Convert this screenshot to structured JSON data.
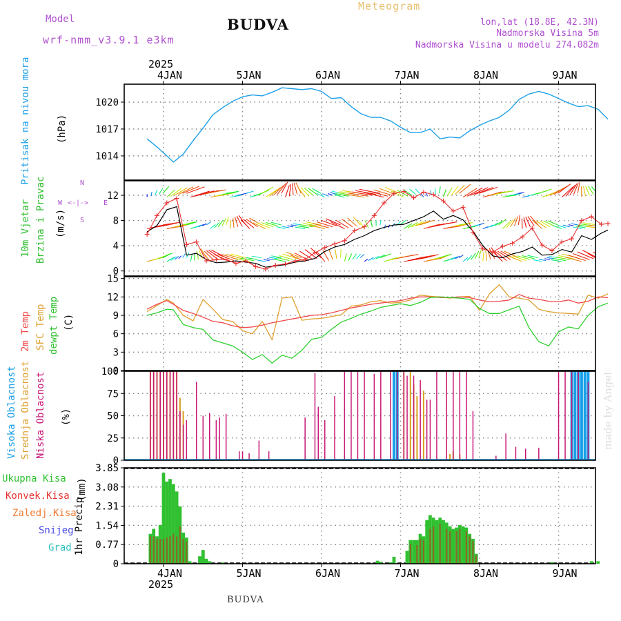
{
  "header": {
    "model_label": "Model",
    "model_name": "wrf-nmm_v3.9.1  e3km",
    "title": "BUDVA",
    "subtitle": "Meteogram",
    "coords": "lon,lat (18.8E, 42.3N)",
    "elevation": "Nadmorska Visina 5m",
    "model_elevation": "Nadmorska Visina u modelu 274.082m",
    "footer": "BUDVA",
    "credit": "made by Angel"
  },
  "colors": {
    "pressure": "#1ea0e8",
    "temp2m": "#f04848",
    "sfc": "#e0a030",
    "dew": "#30d030",
    "high": "#18a0e8",
    "mid": "#d8a020",
    "low": "#c81878",
    "wind_speed": "#000000",
    "gust": "#e83030",
    "total_precip": "#30c030",
    "conv_precip": "#e83030",
    "grid_precip": "#f07830",
    "snow": "#4848e8",
    "graupel": "#30c0c0"
  },
  "time_axis": {
    "year": "2025",
    "days": [
      "4JAN",
      "5JAN",
      "6JAN",
      "7JAN",
      "8JAN",
      "9JAN"
    ],
    "hours_before_first_day": 5,
    "total_hours": 140
  },
  "chart_data": [
    {
      "type": "line",
      "name": "pressure",
      "ylabel": "Pritisak na nivou mora",
      "unit": "(hPa)",
      "yticks": [
        1014,
        1017,
        1020
      ],
      "ylim": [
        1011.3,
        1022.0
      ],
      "x_hours": [
        0,
        3,
        6,
        8,
        11,
        14,
        17,
        20,
        23,
        26,
        29,
        32,
        35,
        38,
        41,
        44,
        47,
        50,
        53,
        56,
        59,
        62,
        65,
        68,
        71,
        74,
        77,
        80,
        83,
        86,
        89,
        92,
        95,
        98,
        101,
        104,
        107,
        110,
        113,
        116,
        119,
        122,
        125,
        128,
        131,
        134,
        137,
        140
      ],
      "values": [
        1015.9,
        1015.0,
        1014.0,
        1013.3,
        1014.2,
        1015.7,
        1017.1,
        1018.6,
        1019.4,
        1020.1,
        1020.6,
        1020.8,
        1020.7,
        1021.1,
        1021.6,
        1021.5,
        1021.4,
        1021.5,
        1021.2,
        1020.4,
        1020.5,
        1019.5,
        1018.7,
        1018.3,
        1018.3,
        1017.9,
        1017.2,
        1016.6,
        1016.6,
        1017.0,
        1015.9,
        1016.1,
        1016.0,
        1016.8,
        1017.4,
        1017.9,
        1018.3,
        1019.1,
        1020.3,
        1020.9,
        1021.2,
        1020.9,
        1020.4,
        1019.9,
        1019.5,
        1019.6,
        1019.2,
        1018.1
      ]
    },
    {
      "type": "line",
      "name": "wind",
      "ylabel": "10m Vjetar Brzina i Pravac",
      "unit": "(m/s)",
      "yticks": [
        0,
        4,
        8,
        12
      ],
      "ylim": [
        -0.8,
        14.3
      ],
      "compass": {
        "n": "N",
        "w": "W",
        "e": "E",
        "s": "S"
      },
      "x_hours": [
        0,
        3,
        6,
        9,
        12,
        15,
        18,
        21,
        24,
        27,
        30,
        33,
        36,
        39,
        42,
        45,
        48,
        51,
        54,
        57,
        60,
        63,
        66,
        69,
        72,
        75,
        78,
        81,
        84,
        87,
        90,
        93,
        96,
        99,
        102,
        105,
        108,
        111,
        114,
        117,
        120,
        123,
        126,
        129,
        132,
        135,
        138,
        140
      ],
      "speed": [
        6.2,
        7.2,
        9.7,
        10.2,
        2.5,
        2.8,
        1.8,
        1.3,
        1.4,
        1.6,
        1.4,
        1.2,
        0.6,
        0.8,
        1.0,
        1.4,
        1.6,
        2.0,
        3.1,
        3.8,
        4.2,
        5.0,
        5.6,
        6.4,
        6.9,
        7.3,
        7.4,
        8.0,
        8.6,
        9.5,
        8.2,
        8.8,
        8.1,
        6.3,
        4.0,
        2.4,
        2.1,
        2.7,
        3.1,
        3.8,
        2.5,
        2.6,
        3.4,
        3.0,
        5.6,
        5.0,
        6.0,
        6.5
      ],
      "gust": [
        5.8,
        8.8,
        10.8,
        11.5,
        4.2,
        4.6,
        1.6,
        1.8,
        1.8,
        1.2,
        1.6,
        0.7,
        0.3,
        0.9,
        1.1,
        1.6,
        1.8,
        2.9,
        3.7,
        4.3,
        4.8,
        6.4,
        7.0,
        8.8,
        10.8,
        12.3,
        12.6,
        11.6,
        12.5,
        12.1,
        11.1,
        9.5,
        10.1,
        6.1,
        3.5,
        3.0,
        3.9,
        4.4,
        5.4,
        6.8,
        4.1,
        3.2,
        4.6,
        5.1,
        8.0,
        8.6,
        7.4,
        7.5
      ]
    },
    {
      "type": "line",
      "name": "temperature",
      "ylabel": "2m Temp / SFC Temp / dewpt Temp",
      "unit": "(C)",
      "yticks": [
        0,
        3,
        6,
        9,
        12,
        15
      ],
      "ylim": [
        0,
        15.3
      ],
      "x_hours": [
        0,
        3,
        6,
        8,
        11,
        14,
        17,
        20,
        23,
        26,
        29,
        32,
        35,
        38,
        41,
        44,
        47,
        50,
        53,
        56,
        59,
        62,
        65,
        68,
        71,
        74,
        77,
        80,
        83,
        86,
        89,
        92,
        95,
        98,
        101,
        104,
        107,
        110,
        113,
        116,
        119,
        122,
        125,
        128,
        131,
        134,
        137,
        140
      ],
      "temp2m": [
        10.0,
        10.8,
        11.4,
        10.8,
        9.8,
        9.3,
        8.7,
        8.0,
        7.8,
        7.3,
        7.0,
        7.1,
        7.4,
        7.8,
        8.1,
        8.4,
        8.7,
        9.0,
        9.1,
        9.4,
        9.8,
        10.2,
        10.5,
        10.8,
        11.0,
        11.2,
        11.4,
        11.8,
        12.0,
        12.0,
        11.9,
        11.9,
        12.0,
        11.9,
        11.5,
        11.2,
        11.3,
        11.5,
        12.4,
        11.8,
        11.6,
        11.3,
        11.2,
        11.5,
        11.0,
        11.3,
        12.0,
        11.9
      ],
      "sfc": [
        9.6,
        10.6,
        11.6,
        11.0,
        9.0,
        8.1,
        11.6,
        10.0,
        8.3,
        8.0,
        6.5,
        6.0,
        8.0,
        5.0,
        11.8,
        12.0,
        8.2,
        8.4,
        8.5,
        8.8,
        9.1,
        10.5,
        10.7,
        11.2,
        11.4,
        11.0,
        11.1,
        11.5,
        12.3,
        12.1,
        12.0,
        11.8,
        12.0,
        12.1,
        9.8,
        12.5,
        14.0,
        12.0,
        11.8,
        11.5,
        10.0,
        9.6,
        9.4,
        9.3,
        9.2,
        12.3,
        11.8,
        12.5
      ],
      "dew": [
        9.0,
        9.4,
        10.0,
        9.9,
        7.5,
        7.0,
        6.7,
        5.0,
        4.5,
        4.0,
        3.0,
        1.8,
        2.6,
        1.2,
        2.5,
        2.0,
        3.3,
        5.1,
        5.4,
        6.7,
        7.9,
        8.5,
        9.2,
        9.7,
        10.3,
        10.6,
        10.9,
        10.6,
        11.1,
        11.9,
        12.0,
        11.9,
        11.8,
        11.6,
        10.1,
        9.3,
        9.3,
        9.9,
        10.5,
        7.0,
        4.7,
        4.0,
        6.3,
        7.1,
        6.8,
        9.0,
        10.4,
        11.0
      ]
    },
    {
      "type": "bar",
      "name": "clouds",
      "ylabel": "Visoka Oblacnost / Srednja Oblacnost / Niska Oblacnost",
      "unit": "(%)",
      "yticks": [
        0,
        25,
        50,
        75,
        100
      ],
      "ylim": [
        0,
        100
      ],
      "legend": [
        "Visoka Oblacnost",
        "Srednja Oblacnost",
        "Niska Oblacnost"
      ],
      "low": [
        [
          1,
          100
        ],
        [
          2,
          100
        ],
        [
          3,
          100
        ],
        [
          4,
          100
        ],
        [
          5,
          100
        ],
        [
          6,
          100
        ],
        [
          7,
          100
        ],
        [
          8,
          100
        ],
        [
          9,
          100
        ],
        [
          10,
          55
        ],
        [
          11,
          40
        ],
        [
          12,
          45
        ],
        [
          15,
          88
        ],
        [
          17,
          50
        ],
        [
          19,
          53
        ],
        [
          21,
          45
        ],
        [
          22,
          48
        ],
        [
          24,
          52
        ],
        [
          28,
          10
        ],
        [
          29,
          10
        ],
        [
          31,
          8
        ],
        [
          34,
          22
        ],
        [
          37,
          10
        ],
        [
          48,
          48
        ],
        [
          51,
          98
        ],
        [
          52,
          60
        ],
        [
          54,
          45
        ],
        [
          57,
          72
        ],
        [
          60,
          100
        ],
        [
          62,
          100
        ],
        [
          64,
          100
        ],
        [
          66,
          100
        ],
        [
          69,
          97
        ],
        [
          71,
          100
        ],
        [
          74,
          100
        ],
        [
          76,
          100
        ],
        [
          78,
          100
        ],
        [
          79,
          95
        ],
        [
          81,
          95
        ],
        [
          83,
          90
        ],
        [
          85,
          68
        ],
        [
          86,
          68
        ],
        [
          88,
          100
        ],
        [
          91,
          100
        ],
        [
          93,
          100
        ],
        [
          95,
          100
        ],
        [
          97,
          100
        ],
        [
          99,
          55
        ],
        [
          106,
          5
        ],
        [
          109,
          30
        ],
        [
          112,
          15
        ],
        [
          115,
          13
        ],
        [
          119,
          14
        ],
        [
          125,
          100
        ],
        [
          127,
          100
        ],
        [
          129,
          100
        ],
        [
          131,
          100
        ],
        [
          134,
          88
        ]
      ],
      "mid": [
        [
          1,
          100
        ],
        [
          2,
          100
        ],
        [
          3,
          100
        ],
        [
          4,
          100
        ],
        [
          5,
          100
        ],
        [
          6,
          100
        ],
        [
          7,
          100
        ],
        [
          8,
          100
        ],
        [
          9,
          100
        ],
        [
          10,
          70
        ],
        [
          11,
          55
        ],
        [
          78,
          100
        ],
        [
          80,
          100
        ],
        [
          81,
          85
        ],
        [
          82,
          72
        ],
        [
          84,
          78
        ],
        [
          92,
          7
        ],
        [
          93,
          10
        ],
        [
          95,
          7
        ]
      ],
      "high": [
        [
          75,
          100
        ],
        [
          76,
          100
        ],
        [
          129,
          100
        ],
        [
          130,
          100
        ],
        [
          131,
          100
        ],
        [
          132,
          100
        ],
        [
          133,
          100
        ],
        [
          134,
          100
        ]
      ]
    },
    {
      "type": "bar",
      "name": "precipitation",
      "ylabel": "1hr Precip",
      "unit": "(mm)",
      "yticks": [
        0,
        0.77,
        1.54,
        2.31,
        3.08,
        3.85
      ],
      "ylim": [
        0,
        3.85
      ],
      "legend": [
        "Ukupna Kisa",
        "Konvek.Kisa",
        "Zaledj.Kisa",
        "Snijeg",
        "Grad"
      ],
      "total": [
        [
          1,
          1.2
        ],
        [
          2,
          1.4
        ],
        [
          3,
          1.1
        ],
        [
          4,
          1.55
        ],
        [
          5,
          3.65
        ],
        [
          6,
          3.3
        ],
        [
          7,
          3.4
        ],
        [
          8,
          3.2
        ],
        [
          9,
          2.9
        ],
        [
          10,
          2.3
        ],
        [
          11,
          1.25
        ],
        [
          12,
          1.05
        ],
        [
          13,
          0.1
        ],
        [
          16,
          0.3
        ],
        [
          17,
          0.55
        ],
        [
          18,
          0.2
        ],
        [
          19,
          0.1
        ],
        [
          23,
          0.05
        ],
        [
          70,
          0.12
        ],
        [
          71,
          0.08
        ],
        [
          74,
          0.06
        ],
        [
          75,
          0.28
        ],
        [
          79,
          0.52
        ],
        [
          80,
          0.95
        ],
        [
          81,
          0.95
        ],
        [
          82,
          0.95
        ],
        [
          83,
          1.2
        ],
        [
          84,
          1.1
        ],
        [
          85,
          1.75
        ],
        [
          86,
          1.95
        ],
        [
          87,
          1.85
        ],
        [
          88,
          1.75
        ],
        [
          89,
          1.85
        ],
        [
          90,
          1.75
        ],
        [
          91,
          1.65
        ],
        [
          92,
          1.5
        ],
        [
          93,
          1.4
        ],
        [
          94,
          1.45
        ],
        [
          95,
          1.55
        ],
        [
          96,
          1.5
        ],
        [
          97,
          1.45
        ],
        [
          98,
          1.2
        ],
        [
          99,
          1.0
        ],
        [
          100,
          0.4
        ],
        [
          123,
          0.06
        ],
        [
          135,
          0.1
        ],
        [
          137,
          0.1
        ]
      ],
      "conv": [
        [
          1,
          1.1
        ],
        [
          2,
          1.1
        ],
        [
          3,
          1.0
        ],
        [
          4,
          1.0
        ],
        [
          5,
          1.0
        ],
        [
          6,
          1.05
        ],
        [
          7,
          1.1
        ],
        [
          8,
          1.2
        ],
        [
          9,
          1.1
        ],
        [
          10,
          1.5
        ],
        [
          11,
          1.0
        ],
        [
          12,
          0.9
        ],
        [
          80,
          0.8
        ],
        [
          82,
          0.75
        ],
        [
          83,
          1.0
        ],
        [
          84,
          0.95
        ],
        [
          86,
          1.4
        ],
        [
          87,
          1.5
        ],
        [
          89,
          1.6
        ],
        [
          91,
          1.4
        ],
        [
          92,
          1.3
        ],
        [
          94,
          1.3
        ],
        [
          95,
          1.4
        ],
        [
          97,
          1.3
        ],
        [
          98,
          1.1
        ],
        [
          99,
          0.9
        ],
        [
          100,
          0.35
        ]
      ]
    }
  ]
}
